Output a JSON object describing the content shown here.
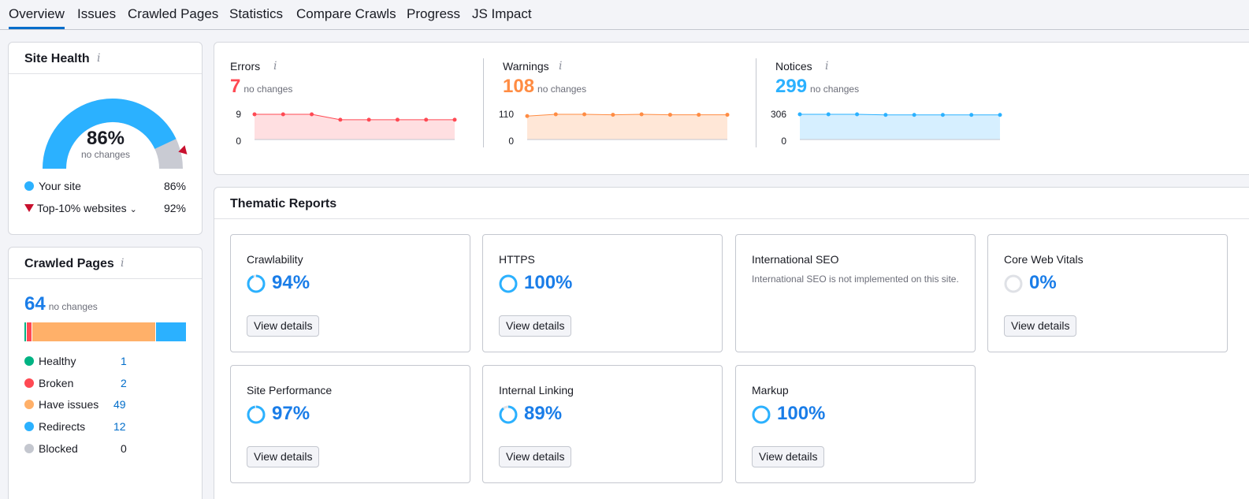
{
  "tabs": [
    "Overview",
    "Issues",
    "Crawled Pages",
    "Statistics",
    "Compare Crawls",
    "Progress",
    "JS Impact"
  ],
  "info_glyph": "i",
  "site_health": {
    "title": "Site Health",
    "value": "86%",
    "note": "no changes",
    "gauge_fraction": 0.86,
    "your_site_label": "Your site",
    "your_site_value": "86%",
    "top10_label": "Top-10% websites",
    "top10_value": "92%",
    "colors": {
      "your_site": "#2bb1ff",
      "top10_marker": "#c8102e",
      "remaining": "#c9cbd3"
    }
  },
  "crawled_pages": {
    "title": "Crawled Pages",
    "total": "64",
    "note": "no changes",
    "rows": [
      {
        "label": "Healthy",
        "value": "1",
        "color": "#00b383"
      },
      {
        "label": "Broken",
        "value": "2",
        "color": "#ff4953"
      },
      {
        "label": "Have issues",
        "value": "49",
        "color": "#ffb069"
      },
      {
        "label": "Redirects",
        "value": "12",
        "color": "#2bb1ff"
      },
      {
        "label": "Blocked",
        "value": "0",
        "color": "#c4c7cf"
      }
    ]
  },
  "issues": [
    {
      "label": "Errors",
      "value": "7",
      "note": "no changes",
      "color": "#ff4953",
      "fill": "#ffdfe1",
      "y_max_label": "9",
      "y_min_label": "0",
      "y_max": 9,
      "points": [
        9,
        9,
        9,
        7,
        7,
        7,
        7,
        7
      ]
    },
    {
      "label": "Warnings",
      "value": "108",
      "note": "no changes",
      "color": "#ff8c43",
      "fill": "#ffe7d7",
      "y_max_label": "110",
      "y_min_label": "0",
      "y_max": 110,
      "points": [
        102,
        110,
        110,
        108,
        110,
        108,
        108,
        108
      ]
    },
    {
      "label": "Notices",
      "value": "299",
      "note": "no changes",
      "color": "#2bb1ff",
      "fill": "#d6efff",
      "y_max_label": "306",
      "y_min_label": "0",
      "y_max": 306,
      "points": [
        306,
        306,
        306,
        299,
        299,
        299,
        299,
        299
      ]
    }
  ],
  "thematic": {
    "title": "Thematic Reports",
    "button_label": "View details",
    "ring_color": "#2bb1ff",
    "ring_track": "#dfe1e6",
    "reports": [
      {
        "name": "Crawlability",
        "pct": "94%",
        "fraction": 0.94
      },
      {
        "name": "HTTPS",
        "pct": "100%",
        "fraction": 1.0
      },
      {
        "name": "International SEO",
        "desc": "International SEO is not implemented on this site."
      },
      {
        "name": "Core Web Vitals",
        "pct": "0%",
        "fraction": 0.0
      },
      {
        "name": "Site Performance",
        "pct": "97%",
        "fraction": 0.97
      },
      {
        "name": "Internal Linking",
        "pct": "89%",
        "fraction": 0.89
      },
      {
        "name": "Markup",
        "pct": "100%",
        "fraction": 1.0
      }
    ]
  }
}
